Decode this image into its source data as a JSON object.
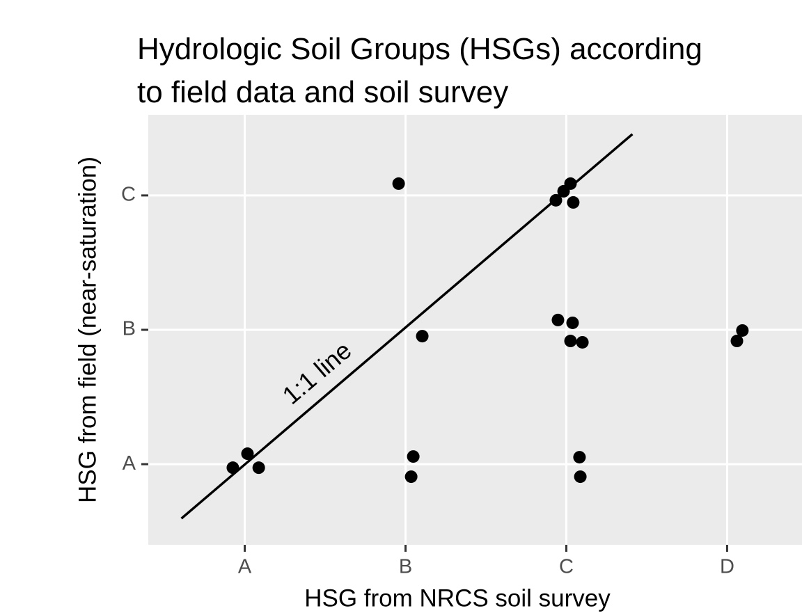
{
  "chart_data": {
    "type": "scatter",
    "title": [
      "Hydrologic Soil Groups (HSGs) according",
      "to field data and soil survey"
    ],
    "xlabel": "HSG from NRCS soil survey",
    "ylabel": "HSG from field (near-saturation)",
    "x": [
      0.926,
      1.017,
      1.087,
      2.048,
      2.035,
      1.957,
      2.104,
      2.935,
      2.983,
      3.026,
      3.043,
      2.948,
      3.039,
      3.026,
      3.1,
      3.082,
      3.087,
      4.061,
      4.095
    ],
    "series": [
      {
        "color": "#000000",
        "values": [
          0.974,
          1.078,
          0.974,
          1.057,
          0.907,
          3.088,
          1.953,
          2.964,
          3.031,
          3.088,
          2.948,
          2.073,
          2.052,
          1.917,
          1.907,
          1.052,
          0.907,
          1.917,
          1.995
        ]
      }
    ],
    "line": {
      "x": [
        0.606,
        3.411
      ],
      "y": [
        0.596,
        3.456
      ],
      "color": "#000000"
    },
    "annotation": "1:1 line",
    "xlim": [
      0.4,
      4.6
    ],
    "ylim": [
      0.4,
      3.6
    ],
    "xticks": [
      {
        "value": 1,
        "label": "A"
      },
      {
        "value": 2,
        "label": "B"
      },
      {
        "value": 3,
        "label": "C"
      },
      {
        "value": 4,
        "label": "D"
      }
    ],
    "yticks": [
      {
        "value": 1,
        "label": "A"
      },
      {
        "value": 2,
        "label": "B"
      },
      {
        "value": 3,
        "label": "C"
      }
    ],
    "grid": true
  }
}
